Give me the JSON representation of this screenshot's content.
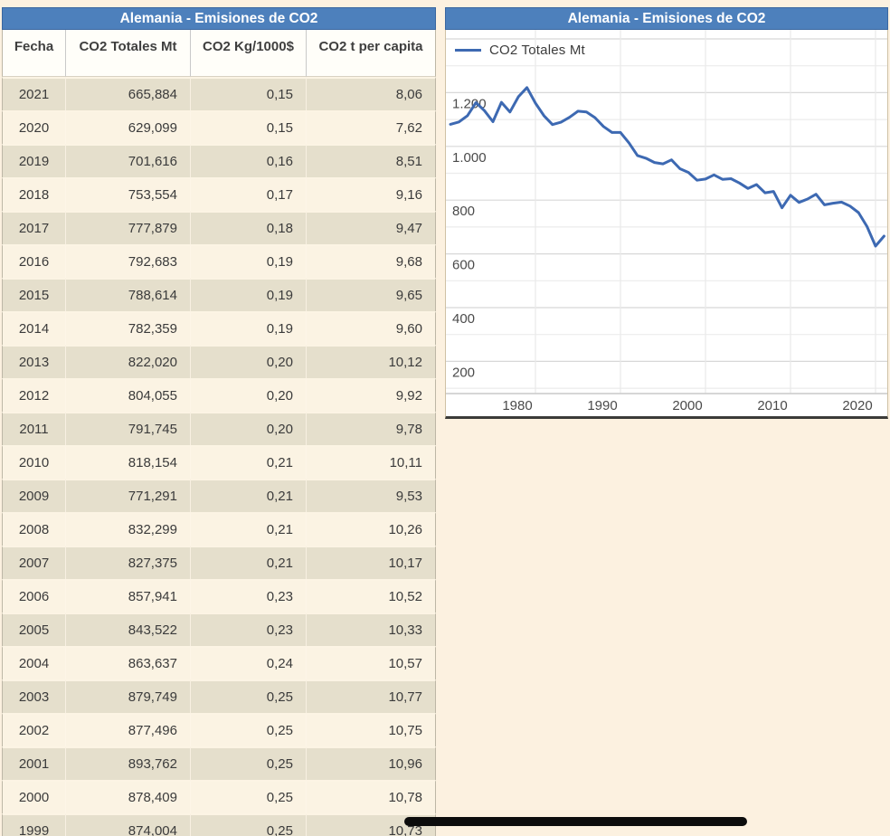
{
  "colors": {
    "page_bg": "#fcf1e0",
    "accent_blue": "#4d80bc",
    "line_blue": "#3d69b2",
    "row_dark": "#e5dfcc",
    "row_light": "#fbf3e3"
  },
  "table": {
    "title": "Alemania - Emisiones de CO2",
    "columns": [
      "Fecha",
      "CO2 Totales Mt",
      "CO2 Kg/1000$",
      "CO2 t per capita"
    ],
    "rows": [
      [
        "2021",
        "665,884",
        "0,15",
        "8,06"
      ],
      [
        "2020",
        "629,099",
        "0,15",
        "7,62"
      ],
      [
        "2019",
        "701,616",
        "0,16",
        "8,51"
      ],
      [
        "2018",
        "753,554",
        "0,17",
        "9,16"
      ],
      [
        "2017",
        "777,879",
        "0,18",
        "9,47"
      ],
      [
        "2016",
        "792,683",
        "0,19",
        "9,68"
      ],
      [
        "2015",
        "788,614",
        "0,19",
        "9,65"
      ],
      [
        "2014",
        "782,359",
        "0,19",
        "9,60"
      ],
      [
        "2013",
        "822,020",
        "0,20",
        "10,12"
      ],
      [
        "2012",
        "804,055",
        "0,20",
        "9,92"
      ],
      [
        "2011",
        "791,745",
        "0,20",
        "9,78"
      ],
      [
        "2010",
        "818,154",
        "0,21",
        "10,11"
      ],
      [
        "2009",
        "771,291",
        "0,21",
        "9,53"
      ],
      [
        "2008",
        "832,299",
        "0,21",
        "10,26"
      ],
      [
        "2007",
        "827,375",
        "0,21",
        "10,17"
      ],
      [
        "2006",
        "857,941",
        "0,23",
        "10,52"
      ],
      [
        "2005",
        "843,522",
        "0,23",
        "10,33"
      ],
      [
        "2004",
        "863,637",
        "0,24",
        "10,57"
      ],
      [
        "2003",
        "879,749",
        "0,25",
        "10,77"
      ],
      [
        "2002",
        "877,496",
        "0,25",
        "10,75"
      ],
      [
        "2001",
        "893,762",
        "0,25",
        "10,96"
      ],
      [
        "2000",
        "878,409",
        "0,25",
        "10,78"
      ],
      [
        "1999",
        "874,004",
        "0,25",
        "10,73"
      ]
    ]
  },
  "chart": {
    "title": "Alemania - Emisiones de CO2",
    "legend_label": "CO2 Totales Mt"
  },
  "chart_data": {
    "type": "line",
    "title": "Alemania - Emisiones de CO2",
    "legend_position": "top-left",
    "grid": true,
    "line_color": "#3d69b2",
    "units": "Mt",
    "xlim": [
      1970,
      2022
    ],
    "ylim": [
      70,
      1440
    ],
    "x_ticks": [
      1980,
      1990,
      2000,
      2010,
      2020
    ],
    "x_tick_labels": [
      "1980",
      "1990",
      "2000",
      "2010",
      "2020"
    ],
    "y_ticks": [
      200,
      400,
      600,
      800,
      1000,
      1200
    ],
    "y_tick_labels": [
      "200",
      "400",
      "600",
      "800",
      "1.000",
      "1.200"
    ],
    "series": [
      {
        "name": "CO2 Totales Mt",
        "x": [
          1970,
          1971,
          1972,
          1973,
          1974,
          1975,
          1976,
          1977,
          1978,
          1979,
          1980,
          1981,
          1982,
          1983,
          1984,
          1985,
          1986,
          1987,
          1988,
          1989,
          1990,
          1991,
          1992,
          1993,
          1994,
          1995,
          1996,
          1997,
          1998,
          1999,
          2000,
          2001,
          2002,
          2003,
          2004,
          2005,
          2006,
          2007,
          2008,
          2009,
          2010,
          2011,
          2012,
          2013,
          2014,
          2015,
          2016,
          2017,
          2018,
          2019,
          2020,
          2021
        ],
        "values": [
          1082,
          1091,
          1114,
          1163,
          1133,
          1092,
          1164,
          1128,
          1185,
          1219,
          1161,
          1114,
          1081,
          1090,
          1108,
          1131,
          1128,
          1107,
          1074,
          1052,
          1052,
          1013,
          966,
          956,
          940,
          935,
          950,
          917,
          903,
          874.0,
          878.4,
          893.8,
          877.5,
          879.7,
          863.6,
          843.5,
          857.9,
          827.4,
          832.3,
          771.3,
          818.2,
          791.7,
          804.1,
          822.0,
          782.4,
          788.6,
          792.7,
          777.9,
          753.6,
          701.6,
          629.1,
          665.9
        ]
      }
    ]
  }
}
